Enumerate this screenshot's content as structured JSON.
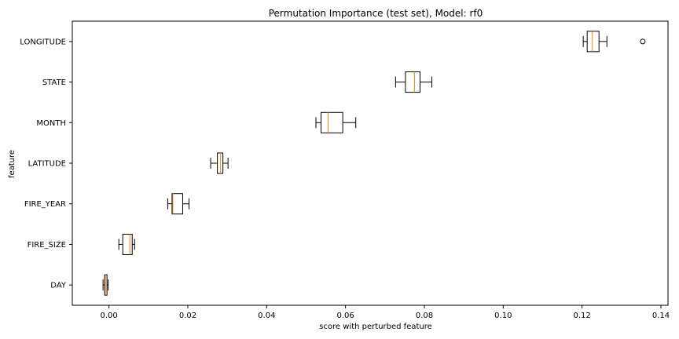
{
  "chart_data": {
    "type": "boxplot",
    "orientation": "horizontal",
    "title": "Permutation Importance (test set), Model: rf0",
    "xlabel": "score with perturbed feature",
    "ylabel": "feature",
    "xlim": [
      -0.0093,
      0.1418
    ],
    "x_ticks": [
      0.0,
      0.02,
      0.04,
      0.06,
      0.08,
      0.1,
      0.12,
      0.14
    ],
    "x_tick_labels": [
      "0.00",
      "0.02",
      "0.04",
      "0.06",
      "0.08",
      "0.10",
      "0.12",
      "0.14"
    ],
    "grid": false,
    "colors": {
      "box": "#000000",
      "median": "#ff7f0e",
      "whisker": "#000000",
      "flier": "#000000"
    },
    "categories": [
      "LONGITUDE",
      "STATE",
      "MONTH",
      "LATITUDE",
      "FIRE_YEAR",
      "FIRE_SIZE",
      "DAY"
    ],
    "boxes": [
      {
        "label": "LONGITUDE",
        "whislo": 0.1203,
        "q1": 0.1213,
        "med": 0.1226,
        "q3": 0.1243,
        "whishi": 0.1263,
        "fliers": [
          0.1354
        ]
      },
      {
        "label": "STATE",
        "whislo": 0.0727,
        "q1": 0.0752,
        "med": 0.0775,
        "q3": 0.0789,
        "whishi": 0.0819,
        "fliers": []
      },
      {
        "label": "MONTH",
        "whislo": 0.0525,
        "q1": 0.0538,
        "med": 0.0556,
        "q3": 0.0593,
        "whishi": 0.0626,
        "fliers": []
      },
      {
        "label": "LATITUDE",
        "whislo": 0.0258,
        "q1": 0.0275,
        "med": 0.0283,
        "q3": 0.0289,
        "whishi": 0.0302,
        "fliers": []
      },
      {
        "label": "FIRE_YEAR",
        "whislo": 0.0149,
        "q1": 0.016,
        "med": 0.0162,
        "q3": 0.0187,
        "whishi": 0.0203,
        "fliers": []
      },
      {
        "label": "FIRE_SIZE",
        "whislo": 0.0025,
        "q1": 0.0035,
        "med": 0.0053,
        "q3": 0.0059,
        "whishi": 0.0065,
        "fliers": []
      },
      {
        "label": "DAY",
        "whislo": -0.0015,
        "q1": -0.0011,
        "med": -0.0009,
        "q3": -0.0005,
        "whishi": -0.0002,
        "fliers": []
      }
    ]
  }
}
